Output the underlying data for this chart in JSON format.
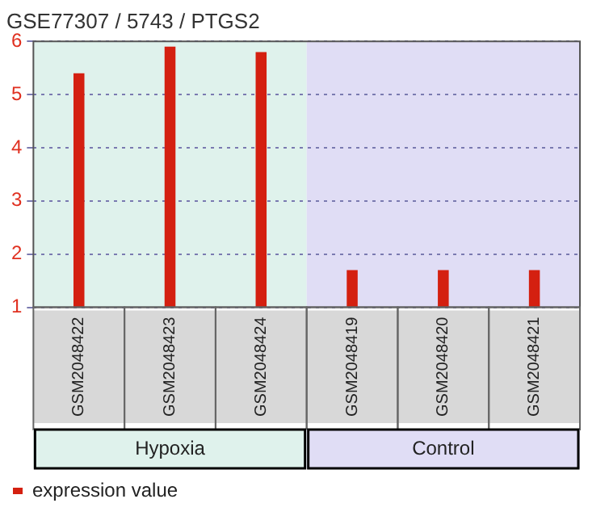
{
  "chart_data": {
    "type": "bar",
    "title": "GSE77307 / 5743 / PTGS2",
    "categories": [
      "GSM2048422",
      "GSM2048423",
      "GSM2048424",
      "GSM2048419",
      "GSM2048420",
      "GSM2048421"
    ],
    "series": [
      {
        "name": "expression value",
        "color": "#d42010",
        "values": [
          5.4,
          5.9,
          5.8,
          1.7,
          1.7,
          1.7
        ]
      }
    ],
    "ylim": [
      1,
      6
    ],
    "yticks": [
      1,
      2,
      3,
      4,
      5,
      6
    ],
    "grid": "y",
    "legend": "bottom",
    "bands": [
      {
        "axis": "x",
        "from": "GSM2048422",
        "to": "GSM2048424",
        "color": "#dff2ec"
      },
      {
        "axis": "x",
        "from": "GSM2048419",
        "to": "GSM2048421",
        "color": "#e0ddf5"
      }
    ],
    "annotations": [
      "Hypoxia",
      "Control"
    ]
  }
}
